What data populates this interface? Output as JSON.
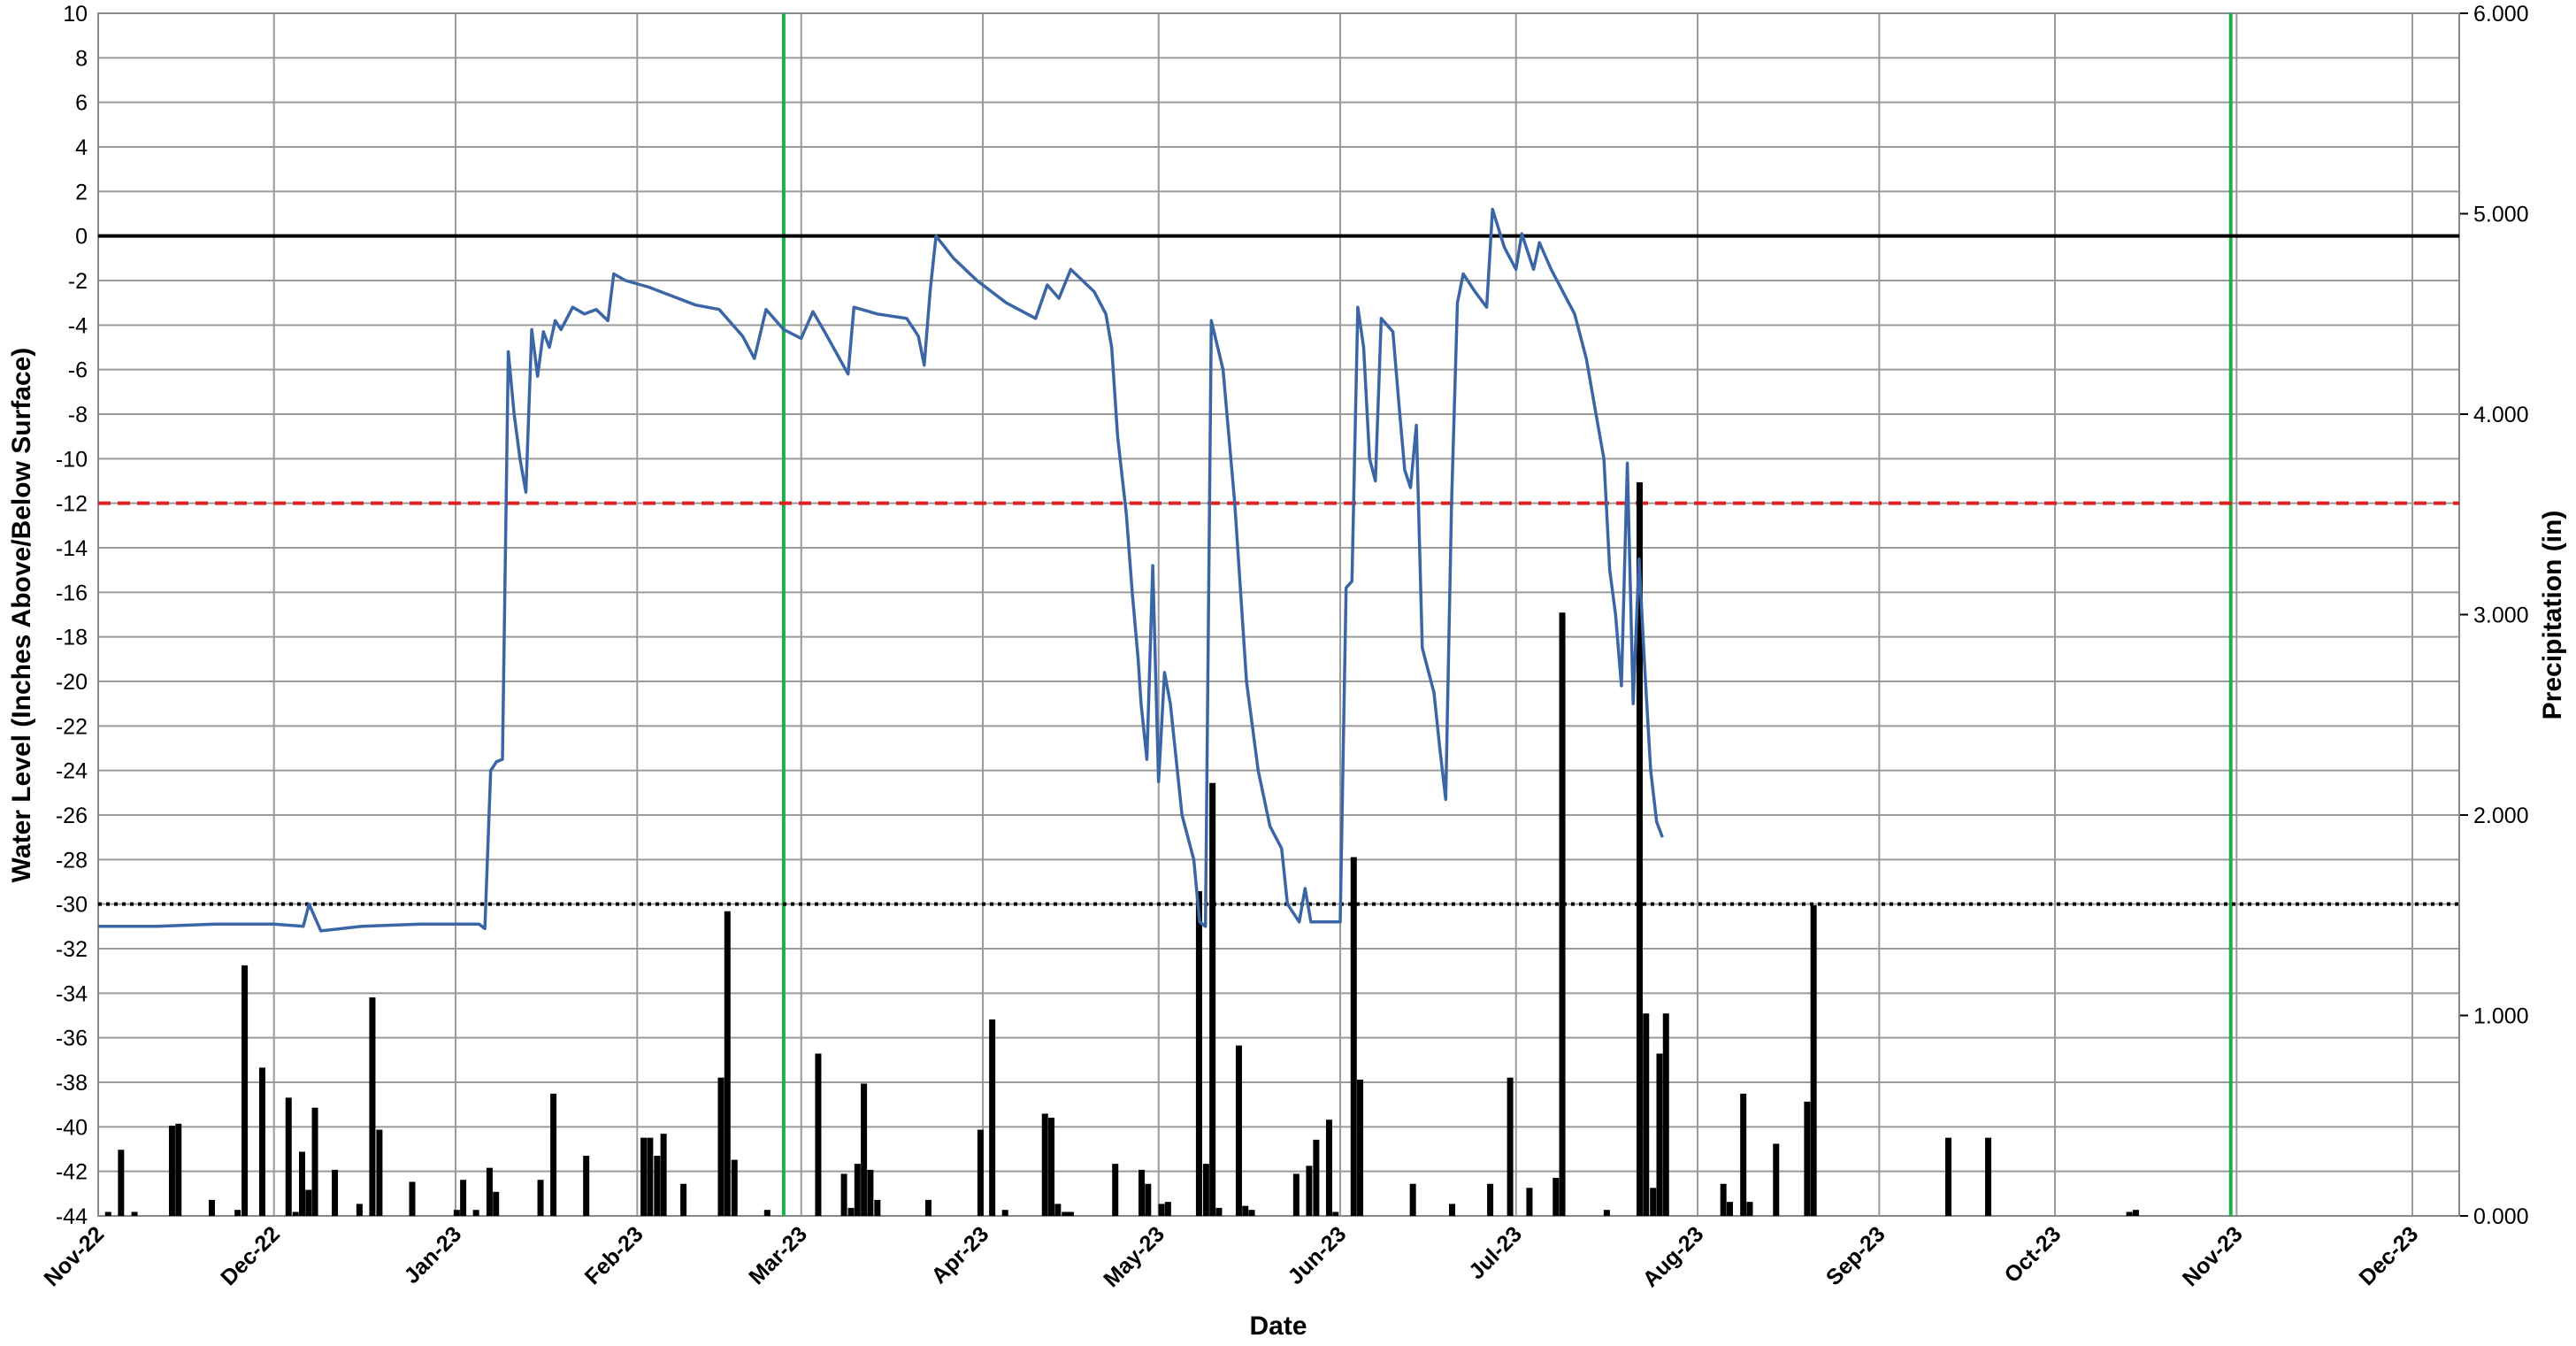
{
  "chart_data": {
    "type": "line",
    "xlabel": "Date",
    "ylabel": "Water Level (Inches Above/Below Surface)",
    "y2label": "Precipitation (in)",
    "xlim": [
      0,
      403
    ],
    "xticks": [
      {
        "value": 0,
        "label": "Nov-22"
      },
      {
        "value": 30,
        "label": "Dec-22"
      },
      {
        "value": 61,
        "label": "Jan-23"
      },
      {
        "value": 92,
        "label": "Feb-23"
      },
      {
        "value": 120,
        "label": "Mar-23"
      },
      {
        "value": 151,
        "label": "Apr-23"
      },
      {
        "value": 181,
        "label": "May-23"
      },
      {
        "value": 212,
        "label": "Jun-23"
      },
      {
        "value": 242,
        "label": "Jul-23"
      },
      {
        "value": 273,
        "label": "Aug-23"
      },
      {
        "value": 304,
        "label": "Sep-23"
      },
      {
        "value": 334,
        "label": "Oct-23"
      },
      {
        "value": 365,
        "label": "Nov-23"
      },
      {
        "value": 395,
        "label": "Dec-23"
      }
    ],
    "ylim": [
      -44,
      10
    ],
    "yticks": [
      -44,
      -42,
      -40,
      -38,
      -36,
      -34,
      -32,
      -30,
      -28,
      -26,
      -24,
      -22,
      -20,
      -18,
      -16,
      -14,
      -12,
      -10,
      -8,
      -6,
      -4,
      -2,
      0,
      2,
      4,
      6,
      8,
      10
    ],
    "y2lim": [
      0,
      6
    ],
    "y2ticks": [
      {
        "value": 0,
        "label": "0.000"
      },
      {
        "value": 1,
        "label": "1.000"
      },
      {
        "value": 2,
        "label": "2.000"
      },
      {
        "value": 3,
        "label": "3.000"
      },
      {
        "value": 4,
        "label": "4.000"
      },
      {
        "value": 5,
        "label": "5.000"
      },
      {
        "value": 6,
        "label": "6.000"
      }
    ],
    "grid": true,
    "hlines": [
      {
        "y": 0,
        "color": "#000000",
        "style": "solid"
      },
      {
        "y": -12,
        "color": "#e02020",
        "style": "dashed"
      },
      {
        "y": -30,
        "color": "#000000",
        "style": "dotted"
      }
    ],
    "vlines": [
      {
        "x": 117,
        "color": "#1fae4a"
      },
      {
        "x": 364,
        "color": "#1fae4a"
      }
    ],
    "series": [
      {
        "type": "bar",
        "axis": "y2",
        "color": "#000000",
        "x": [
          1.7,
          3.9,
          6.2,
          12.6,
          13.7,
          19.4,
          23.8,
          25,
          28,
          32.5,
          33.7,
          34.8,
          35.9,
          37,
          40.4,
          44.6,
          46.8,
          48,
          53.6,
          61.2,
          62.3,
          64.5,
          66.8,
          67.9,
          75.5,
          77.7,
          83.3,
          93.1,
          94.2,
          95.4,
          96.5,
          99.9,
          106.3,
          107.4,
          108.6,
          114.2,
          122.9,
          127.3,
          128.5,
          129.6,
          130.7,
          131.8,
          133,
          141.7,
          150.6,
          152.6,
          154.8,
          161.6,
          162.7,
          163.8,
          165,
          166,
          173.6,
          178.1,
          179.2,
          181.5,
          182.6,
          187.9,
          189.1,
          190.2,
          191.3,
          194.7,
          195.8,
          196.9,
          204.5,
          206.7,
          207.9,
          210.1,
          211.2,
          214.3,
          215.4,
          224.4,
          231.1,
          237.6,
          241,
          244.3,
          248.8,
          249.9,
          257.5,
          263.1,
          264.2,
          265.4,
          266.5,
          267.6,
          277.4,
          278.5,
          280.8,
          281.9,
          286.4,
          291.7,
          292.8,
          315.8,
          322.6,
          346.7,
          347.8
        ],
        "values": [
          0.02,
          0.33,
          0.02,
          0.45,
          0.46,
          0.08,
          0.03,
          1.25,
          0.74,
          0.59,
          0.02,
          0.32,
          0.13,
          0.54,
          0.23,
          0.06,
          1.09,
          0.43,
          0.17,
          0.03,
          0.18,
          0.03,
          0.24,
          0.12,
          0.18,
          0.61,
          0.3,
          0.39,
          0.39,
          0.3,
          0.41,
          0.16,
          0.69,
          1.52,
          0.28,
          0.03,
          0.81,
          0.21,
          0.04,
          0.26,
          0.66,
          0.23,
          0.08,
          0.08,
          0.43,
          0.98,
          0.03,
          0.51,
          0.49,
          0.06,
          0.02,
          0.02,
          0.26,
          0.23,
          0.16,
          0.06,
          0.07,
          1.62,
          0.26,
          2.16,
          0.04,
          0.85,
          0.05,
          0.03,
          0.21,
          0.25,
          0.38,
          0.48,
          0.02,
          1.79,
          0.68,
          0.16,
          0.06,
          0.16,
          0.69,
          0.14,
          0.19,
          3.01,
          0.03,
          3.66,
          1.01,
          0.14,
          0.81,
          1.01,
          0.16,
          0.07,
          0.61,
          0.07,
          0.36,
          0.57,
          1.55,
          0.39,
          0.39,
          0.02,
          0.03
        ]
      },
      {
        "type": "line",
        "color": "#3b66a6",
        "x": [
          0,
          10,
          20,
          30,
          35,
          36,
          38,
          45,
          55,
          65,
          66,
          67,
          68,
          69,
          70,
          71,
          72,
          73,
          74,
          75,
          76,
          77,
          78,
          79,
          81,
          83,
          85,
          87,
          88,
          90,
          94,
          98,
          102,
          106,
          110,
          112,
          114,
          117,
          120,
          122,
          124,
          128,
          129,
          133,
          138,
          140,
          141,
          142,
          143,
          146,
          150,
          155,
          160,
          162,
          164,
          166,
          170,
          172,
          173,
          174,
          175.5,
          176.5,
          177.5,
          178,
          179,
          180,
          181,
          182,
          183,
          185,
          187,
          188,
          189,
          190,
          192,
          194,
          196,
          198,
          200,
          202,
          203,
          205,
          206,
          207,
          212,
          213,
          214,
          215,
          216,
          217,
          218,
          219,
          221,
          222,
          223,
          224,
          225,
          226,
          228,
          229,
          230,
          231,
          232,
          233,
          235,
          237,
          238,
          240,
          242,
          243,
          245,
          246,
          248,
          250,
          252,
          254,
          256,
          257,
          258,
          259,
          260,
          261,
          262,
          263,
          264,
          265,
          266,
          267
        ],
        "values": [
          -31,
          -31,
          -30.9,
          -30.9,
          -31,
          -30,
          -31.2,
          -31,
          -30.9,
          -30.9,
          -31.1,
          -24,
          -23.6,
          -23.5,
          -5.2,
          -8,
          -10,
          -11.5,
          -4.2,
          -6.3,
          -4.3,
          -5,
          -3.8,
          -4.2,
          -3.2,
          -3.5,
          -3.3,
          -3.8,
          -1.7,
          -2,
          -2.3,
          -2.7,
          -3.1,
          -3.3,
          -4.5,
          -5.5,
          -3.3,
          -4.2,
          -4.6,
          -3.4,
          -4.3,
          -6.2,
          -3.2,
          -3.5,
          -3.7,
          -4.5,
          -5.8,
          -2.5,
          0,
          -1,
          -2,
          -3,
          -3.7,
          -2.2,
          -2.8,
          -1.5,
          -2.5,
          -3.5,
          -5,
          -9,
          -12.5,
          -16,
          -19,
          -21,
          -23.5,
          -14.8,
          -24.5,
          -19.6,
          -21,
          -26,
          -28,
          -30.8,
          -31,
          -3.8,
          -6,
          -12,
          -20,
          -24,
          -26.5,
          -27.5,
          -30,
          -30.8,
          -29.3,
          -30.8,
          -30.8,
          -15.8,
          -15.5,
          -3.2,
          -5,
          -10,
          -11,
          -3.7,
          -4.3,
          -7.5,
          -10.5,
          -11.3,
          -8.5,
          -18.5,
          -20.5,
          -23,
          -25.3,
          -12,
          -3,
          -1.7,
          -2.5,
          -3.2,
          1.2,
          -0.5,
          -1.5,
          0.1,
          -1.5,
          -0.3,
          -1.5,
          -2.5,
          -3.5,
          -5.5,
          -8.5,
          -10,
          -15,
          -17,
          -20.2,
          -10.2,
          -21,
          -14.5,
          -19.5,
          -24,
          -26.3,
          -27
        ]
      }
    ]
  }
}
